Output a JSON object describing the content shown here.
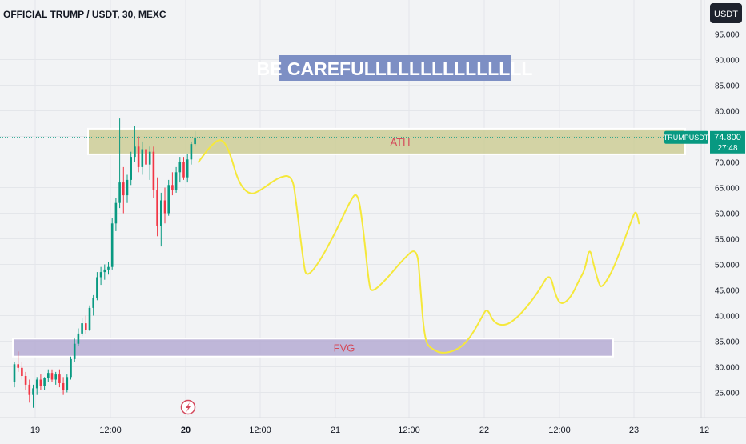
{
  "header": {
    "title": "OFFICIAL TRUMP / USDT, 30, MEXC",
    "currency_button": "USDT"
  },
  "annotations": {
    "warning": "BE CAREFULLLLLLLLLLLLLLL",
    "ath_label": "ATH",
    "fvg_label": "FVG",
    "ath_zone": [
      71.5,
      76.5
    ],
    "fvg_zone": [
      32.0,
      35.5
    ]
  },
  "price_tag": {
    "symbol": "TRUMPUSDT",
    "price": "74.800",
    "countdown": "27:48",
    "value": 74.8
  },
  "chart_data": {
    "type": "candlestick",
    "title": "OFFICIAL TRUMP / USDT, 30, MEXC",
    "y_axis": {
      "ticks": [
        "95.000",
        "90.000",
        "85.000",
        "80.000",
        "75.000",
        "70.000",
        "65.000",
        "60.000",
        "55.000",
        "50.000",
        "45.000",
        "40.000",
        "35.000",
        "30.000",
        "25.000"
      ],
      "range": [
        20,
        97
      ]
    },
    "x_axis": {
      "ticks": [
        "19",
        "12:00",
        "20",
        "12:00",
        "21",
        "12:00",
        "22",
        "12:00",
        "23",
        "12"
      ]
    },
    "candles": [
      {
        "o": 27.0,
        "h": 31.0,
        "l": 26.0,
        "c": 30.5
      },
      {
        "o": 30.5,
        "h": 33.0,
        "l": 29.0,
        "c": 29.8
      },
      {
        "o": 29.8,
        "h": 31.0,
        "l": 27.5,
        "c": 28.2
      },
      {
        "o": 28.2,
        "h": 29.0,
        "l": 25.5,
        "c": 26.5
      },
      {
        "o": 26.5,
        "h": 27.5,
        "l": 23.0,
        "c": 24.5
      },
      {
        "o": 24.5,
        "h": 26.5,
        "l": 22.0,
        "c": 25.8
      },
      {
        "o": 25.8,
        "h": 28.0,
        "l": 24.5,
        "c": 27.5
      },
      {
        "o": 27.5,
        "h": 28.5,
        "l": 25.5,
        "c": 26.2
      },
      {
        "o": 26.2,
        "h": 28.0,
        "l": 25.5,
        "c": 27.8
      },
      {
        "o": 27.8,
        "h": 29.5,
        "l": 27.0,
        "c": 28.8
      },
      {
        "o": 28.8,
        "h": 29.5,
        "l": 27.0,
        "c": 27.5
      },
      {
        "o": 27.5,
        "h": 29.0,
        "l": 26.5,
        "c": 28.5
      },
      {
        "o": 28.5,
        "h": 29.5,
        "l": 26.0,
        "c": 26.8
      },
      {
        "o": 26.8,
        "h": 28.0,
        "l": 24.5,
        "c": 25.5
      },
      {
        "o": 25.5,
        "h": 28.5,
        "l": 25.0,
        "c": 28.0
      },
      {
        "o": 28.0,
        "h": 32.0,
        "l": 27.5,
        "c": 31.5
      },
      {
        "o": 31.5,
        "h": 35.5,
        "l": 31.0,
        "c": 34.5
      },
      {
        "o": 34.5,
        "h": 37.5,
        "l": 34.0,
        "c": 36.5
      },
      {
        "o": 36.5,
        "h": 39.5,
        "l": 36.0,
        "c": 38.5
      },
      {
        "o": 38.5,
        "h": 40.0,
        "l": 36.5,
        "c": 37.2
      },
      {
        "o": 37.2,
        "h": 42.0,
        "l": 37.0,
        "c": 41.5
      },
      {
        "o": 41.5,
        "h": 44.0,
        "l": 40.0,
        "c": 43.5
      },
      {
        "o": 43.5,
        "h": 48.5,
        "l": 43.0,
        "c": 47.5
      },
      {
        "o": 47.5,
        "h": 49.5,
        "l": 46.0,
        "c": 48.5
      },
      {
        "o": 48.5,
        "h": 50.0,
        "l": 47.0,
        "c": 49.0
      },
      {
        "o": 49.0,
        "h": 50.5,
        "l": 48.0,
        "c": 49.5
      },
      {
        "o": 49.5,
        "h": 59.0,
        "l": 49.0,
        "c": 58.0
      },
      {
        "o": 58.0,
        "h": 63.0,
        "l": 56.5,
        "c": 62.0
      },
      {
        "o": 62.0,
        "h": 78.5,
        "l": 61.0,
        "c": 66.0
      },
      {
        "o": 66.0,
        "h": 69.0,
        "l": 60.0,
        "c": 63.5
      },
      {
        "o": 63.5,
        "h": 67.5,
        "l": 62.0,
        "c": 66.5
      },
      {
        "o": 66.5,
        "h": 72.0,
        "l": 65.5,
        "c": 71.0
      },
      {
        "o": 71.0,
        "h": 77.0,
        "l": 70.0,
        "c": 73.0
      },
      {
        "o": 73.0,
        "h": 75.0,
        "l": 68.0,
        "c": 69.0
      },
      {
        "o": 69.0,
        "h": 74.0,
        "l": 67.5,
        "c": 72.5
      },
      {
        "o": 72.5,
        "h": 74.5,
        "l": 68.5,
        "c": 69.5
      },
      {
        "o": 69.5,
        "h": 73.0,
        "l": 66.5,
        "c": 72.0
      },
      {
        "o": 72.0,
        "h": 73.0,
        "l": 63.0,
        "c": 64.5
      },
      {
        "o": 64.5,
        "h": 67.0,
        "l": 55.5,
        "c": 57.5
      },
      {
        "o": 57.5,
        "h": 64.0,
        "l": 53.5,
        "c": 62.5
      },
      {
        "o": 62.5,
        "h": 65.0,
        "l": 58.0,
        "c": 60.0
      },
      {
        "o": 60.0,
        "h": 66.5,
        "l": 59.5,
        "c": 65.5
      },
      {
        "o": 65.5,
        "h": 68.0,
        "l": 63.5,
        "c": 64.5
      },
      {
        "o": 64.5,
        "h": 69.0,
        "l": 64.0,
        "c": 68.0
      },
      {
        "o": 68.0,
        "h": 71.0,
        "l": 66.0,
        "c": 70.0
      },
      {
        "o": 70.0,
        "h": 71.0,
        "l": 66.5,
        "c": 67.0
      },
      {
        "o": 67.0,
        "h": 71.5,
        "l": 66.0,
        "c": 70.5
      },
      {
        "o": 70.5,
        "h": 74.0,
        "l": 69.5,
        "c": 73.5
      },
      {
        "o": 73.5,
        "h": 76.0,
        "l": 73.0,
        "c": 74.8
      }
    ],
    "projection": [
      [
        0.0,
        70.0
      ],
      [
        2.0,
        73.0
      ],
      [
        4.0,
        74.8
      ],
      [
        5.5,
        72.0
      ],
      [
        7.0,
        66.0
      ],
      [
        9.0,
        63.5
      ],
      [
        11.0,
        64.5
      ],
      [
        14.0,
        67.0
      ],
      [
        16.5,
        67.5
      ],
      [
        17.2,
        62.0
      ],
      [
        18.5,
        50.0
      ],
      [
        19.0,
        47.5
      ],
      [
        21.0,
        50.0
      ],
      [
        24.0,
        56.0
      ],
      [
        26.5,
        62.0
      ],
      [
        28.0,
        64.5
      ],
      [
        29.0,
        57.0
      ],
      [
        30.0,
        46.0
      ],
      [
        30.5,
        44.5
      ],
      [
        33.0,
        47.0
      ],
      [
        36.0,
        51.0
      ],
      [
        38.5,
        53.5
      ],
      [
        39.0,
        46.0
      ],
      [
        39.8,
        35.0
      ],
      [
        41.0,
        33.5
      ],
      [
        43.0,
        32.5
      ],
      [
        46.0,
        33.5
      ],
      [
        48.0,
        36.0
      ],
      [
        50.0,
        40.0
      ],
      [
        50.8,
        41.5
      ],
      [
        52.0,
        38.5
      ],
      [
        54.0,
        38.0
      ],
      [
        56.0,
        39.5
      ],
      [
        58.0,
        42.0
      ],
      [
        60.0,
        45.0
      ],
      [
        61.8,
        48.5
      ],
      [
        62.8,
        44.0
      ],
      [
        63.8,
        42.0
      ],
      [
        65.5,
        43.5
      ],
      [
        67.0,
        47.0
      ],
      [
        68.0,
        49.0
      ],
      [
        68.8,
        53.5
      ],
      [
        69.5,
        50.0
      ],
      [
        70.5,
        46.0
      ],
      [
        71.0,
        45.5
      ],
      [
        72.5,
        48.0
      ],
      [
        74.0,
        52.0
      ],
      [
        75.5,
        56.5
      ],
      [
        76.5,
        59.5
      ],
      [
        77.0,
        60.5
      ],
      [
        77.5,
        58.0
      ]
    ],
    "price_line": 74.8
  }
}
